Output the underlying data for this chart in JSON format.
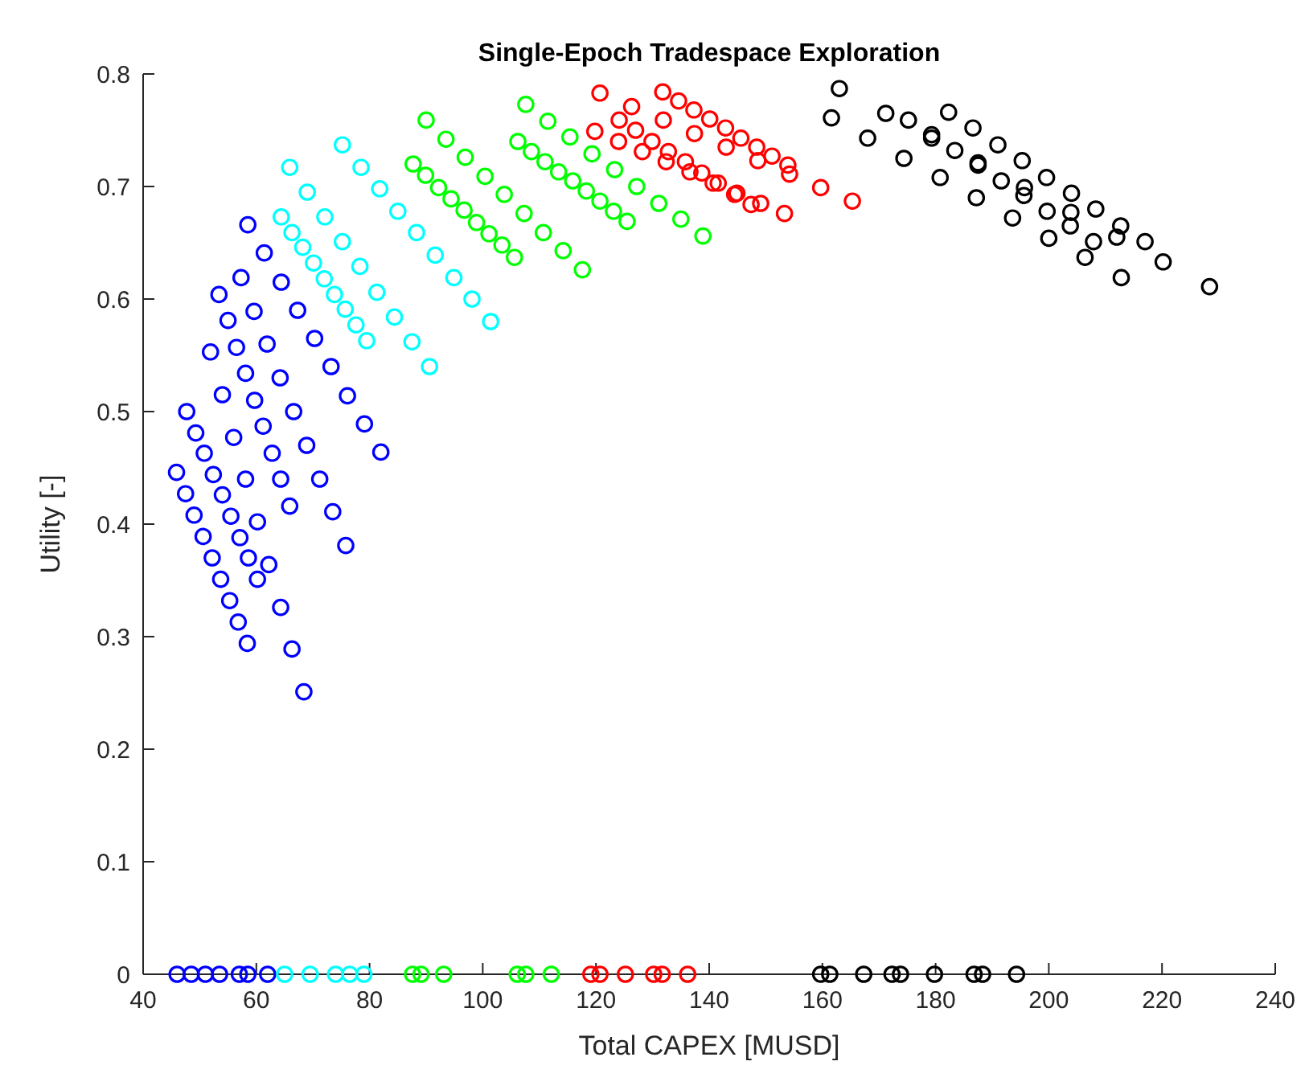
{
  "chart_data": {
    "type": "scatter",
    "title": "Single-Epoch Tradespace Exploration",
    "xlabel": "Total CAPEX [MUSD]",
    "ylabel": "Utility [-]",
    "xlim": [
      40,
      240
    ],
    "xticks": [
      40,
      60,
      80,
      100,
      120,
      140,
      160,
      180,
      200,
      220,
      240
    ],
    "ylim": [
      0,
      0.8
    ],
    "yticks": [
      0,
      0.1,
      0.2,
      0.3,
      0.4,
      0.5,
      0.6,
      0.7,
      0.8
    ],
    "marker": "circle",
    "grid": false,
    "series": [
      {
        "color": "#0000ff",
        "x": [
          45.9,
          47.5,
          49.0,
          50.6,
          52.2,
          53.7,
          55.3,
          56.8,
          58.4,
          47.7,
          49.3,
          50.8,
          52.4,
          54.0,
          55.5,
          57.1,
          58.6,
          60.2,
          51.9,
          54.0,
          56.0,
          58.1,
          60.2,
          62.2,
          64.3,
          66.3,
          68.4,
          53.4,
          55.0,
          56.5,
          58.1,
          59.7,
          61.2,
          62.8,
          64.3,
          65.9,
          57.3,
          59.6,
          61.9,
          64.2,
          66.6,
          68.9,
          71.2,
          73.5,
          75.8,
          58.5,
          61.4,
          64.4,
          67.3,
          70.3,
          73.2,
          76.1,
          79.1,
          82.0,
          46.0,
          48.5,
          51.0,
          53.5,
          57.0,
          58.5,
          62.0
        ],
        "values": [
          0.446,
          0.427,
          0.408,
          0.389,
          0.37,
          0.351,
          0.332,
          0.313,
          0.294,
          0.5,
          0.481,
          0.463,
          0.444,
          0.426,
          0.407,
          0.388,
          0.37,
          0.351,
          0.553,
          0.515,
          0.477,
          0.44,
          0.402,
          0.364,
          0.326,
          0.289,
          0.251,
          0.604,
          0.581,
          0.557,
          0.534,
          0.51,
          0.487,
          0.463,
          0.44,
          0.416,
          0.619,
          0.589,
          0.56,
          0.53,
          0.5,
          0.47,
          0.44,
          0.411,
          0.381,
          0.666,
          0.641,
          0.615,
          0.59,
          0.565,
          0.54,
          0.514,
          0.489,
          0.464,
          0,
          0,
          0,
          0,
          0,
          0,
          0
        ]
      },
      {
        "color": "#00ffff",
        "x": [
          64.4,
          66.3,
          68.2,
          70.1,
          72.0,
          73.8,
          75.7,
          77.6,
          79.5,
          65.9,
          69.0,
          72.1,
          75.2,
          78.3,
          81.3,
          84.4,
          87.5,
          90.6,
          75.2,
          78.5,
          81.8,
          85.0,
          88.3,
          91.6,
          94.9,
          98.1,
          101.4,
          65.0,
          69.5,
          74.0,
          76.5,
          79.0
        ],
        "values": [
          0.673,
          0.659,
          0.646,
          0.632,
          0.618,
          0.604,
          0.591,
          0.577,
          0.563,
          0.717,
          0.695,
          0.673,
          0.651,
          0.629,
          0.606,
          0.584,
          0.562,
          0.54,
          0.737,
          0.717,
          0.698,
          0.678,
          0.659,
          0.639,
          0.619,
          0.6,
          0.58,
          0,
          0,
          0,
          0,
          0
        ]
      },
      {
        "color": "#00ff00",
        "x": [
          87.7,
          89.9,
          92.2,
          94.4,
          96.7,
          98.9,
          101.1,
          103.4,
          105.6,
          90.0,
          93.5,
          96.9,
          100.4,
          103.8,
          107.3,
          110.7,
          114.2,
          117.6,
          106.2,
          108.6,
          111.0,
          113.4,
          115.9,
          118.3,
          120.7,
          123.1,
          125.5,
          107.6,
          111.5,
          115.4,
          119.3,
          123.3,
          127.2,
          131.1,
          135.0,
          138.9,
          87.6,
          89.1,
          93.1,
          106.1,
          107.6,
          112.1
        ],
        "values": [
          0.72,
          0.71,
          0.699,
          0.689,
          0.679,
          0.668,
          0.658,
          0.648,
          0.637,
          0.759,
          0.742,
          0.726,
          0.709,
          0.693,
          0.676,
          0.659,
          0.643,
          0.626,
          0.74,
          0.731,
          0.722,
          0.713,
          0.705,
          0.696,
          0.687,
          0.678,
          0.669,
          0.773,
          0.758,
          0.744,
          0.729,
          0.715,
          0.7,
          0.685,
          0.671,
          0.656,
          0,
          0,
          0,
          0,
          0,
          0
        ]
      },
      {
        "color": "#ff0000",
        "x": [
          119.8,
          124.0,
          128.2,
          132.4,
          136.6,
          140.7,
          144.9,
          149.1,
          153.3,
          120.7,
          126.3,
          131.9,
          137.4,
          143.0,
          148.6,
          154.2,
          159.7,
          165.3,
          131.8,
          134.6,
          137.3,
          140.1,
          142.9,
          145.6,
          148.4,
          151.1,
          153.9,
          124.1,
          127.0,
          129.9,
          132.8,
          135.8,
          138.7,
          141.6,
          144.5,
          147.4,
          119.1,
          120.7,
          125.2,
          130.2,
          131.7,
          136.2
        ],
        "values": [
          0.749,
          0.74,
          0.731,
          0.722,
          0.713,
          0.703,
          0.694,
          0.685,
          0.676,
          0.783,
          0.771,
          0.759,
          0.747,
          0.735,
          0.723,
          0.711,
          0.699,
          0.687,
          0.784,
          0.776,
          0.768,
          0.76,
          0.752,
          0.743,
          0.735,
          0.727,
          0.719,
          0.759,
          0.75,
          0.74,
          0.731,
          0.722,
          0.712,
          0.703,
          0.693,
          0.684,
          0,
          0,
          0,
          0,
          0,
          0
        ]
      },
      {
        "color": "#000000",
        "x": [
          161.6,
          168.0,
          174.4,
          180.8,
          187.2,
          193.6,
          200.0,
          206.4,
          212.8,
          163.0,
          171.2,
          179.3,
          187.5,
          195.7,
          203.9,
          212.0,
          220.2,
          228.4,
          175.2,
          179.3,
          183.4,
          187.5,
          191.6,
          195.6,
          199.7,
          203.8,
          207.9,
          182.3,
          186.6,
          191.0,
          195.3,
          199.6,
          204.0,
          208.3,
          212.7,
          217.0,
          159.7,
          161.3,
          167.3,
          172.3,
          173.8,
          179.8,
          186.8,
          188.3,
          194.3
        ],
        "values": [
          0.761,
          0.743,
          0.725,
          0.708,
          0.69,
          0.672,
          0.654,
          0.637,
          0.619,
          0.787,
          0.765,
          0.743,
          0.721,
          0.699,
          0.677,
          0.655,
          0.633,
          0.611,
          0.759,
          0.746,
          0.732,
          0.719,
          0.705,
          0.692,
          0.678,
          0.665,
          0.651,
          0.766,
          0.752,
          0.737,
          0.723,
          0.708,
          0.694,
          0.68,
          0.665,
          0.651,
          0,
          0,
          0,
          0,
          0,
          0,
          0,
          0,
          0
        ]
      }
    ]
  }
}
